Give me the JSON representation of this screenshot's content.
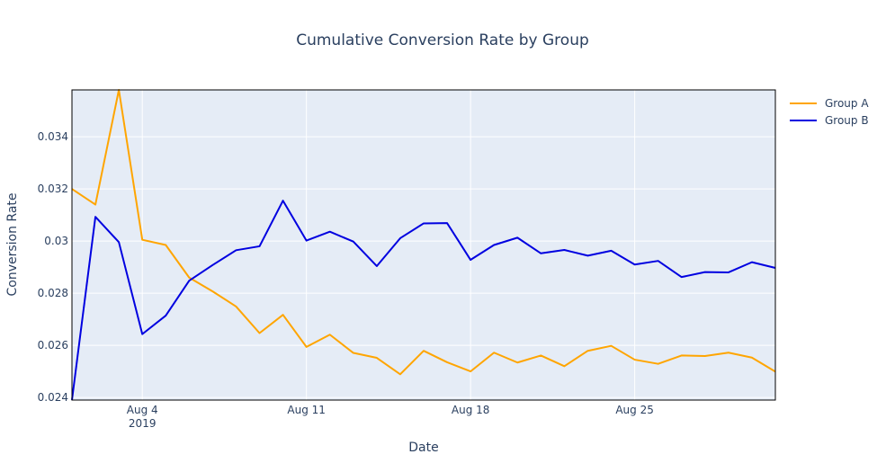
{
  "chart_data": {
    "type": "line",
    "title": "Cumulative Conversion Rate by Group",
    "xlabel": "Date",
    "ylabel": "Conversion Rate",
    "x": [
      "2019-08-01",
      "2019-08-02",
      "2019-08-03",
      "2019-08-04",
      "2019-08-05",
      "2019-08-06",
      "2019-08-07",
      "2019-08-08",
      "2019-08-09",
      "2019-08-10",
      "2019-08-11",
      "2019-08-12",
      "2019-08-13",
      "2019-08-14",
      "2019-08-15",
      "2019-08-16",
      "2019-08-17",
      "2019-08-18",
      "2019-08-19",
      "2019-08-20",
      "2019-08-21",
      "2019-08-22",
      "2019-08-23",
      "2019-08-24",
      "2019-08-25",
      "2019-08-26",
      "2019-08-27",
      "2019-08-28",
      "2019-08-29",
      "2019-08-30",
      "2019-08-31"
    ],
    "xlim": [
      "2019-08-01",
      "2019-08-31"
    ],
    "ylim": [
      0.0239,
      0.0358
    ],
    "x_ticks": [
      {
        "date": "2019-08-04",
        "label": "Aug 4",
        "sublabel": "2019"
      },
      {
        "date": "2019-08-11",
        "label": "Aug 11",
        "sublabel": ""
      },
      {
        "date": "2019-08-18",
        "label": "Aug 18",
        "sublabel": ""
      },
      {
        "date": "2019-08-25",
        "label": "Aug 25",
        "sublabel": ""
      }
    ],
    "y_ticks": [
      {
        "value": 0.024,
        "label": "0.024"
      },
      {
        "value": 0.026,
        "label": "0.026"
      },
      {
        "value": 0.028,
        "label": "0.028"
      },
      {
        "value": 0.03,
        "label": "0.03"
      },
      {
        "value": 0.032,
        "label": "0.032"
      },
      {
        "value": 0.034,
        "label": "0.034"
      }
    ],
    "grid": true,
    "legend_position": "top-right",
    "series": [
      {
        "name": "Group A",
        "color": "#FFA500",
        "values": [
          0.032,
          0.0314,
          0.0358,
          0.03005,
          0.02985,
          0.0286,
          0.02807,
          0.02749,
          0.02647,
          0.02717,
          0.02594,
          0.02641,
          0.02571,
          0.02552,
          0.02489,
          0.02579,
          0.02535,
          0.025,
          0.02572,
          0.02534,
          0.02561,
          0.0252,
          0.02579,
          0.02598,
          0.02545,
          0.02529,
          0.02561,
          0.02559,
          0.02572,
          0.02553,
          0.02499
        ]
      },
      {
        "name": "Group B",
        "color": "#0000E0",
        "values": [
          0.0239,
          0.03093,
          0.02996,
          0.02643,
          0.02714,
          0.02848,
          0.02908,
          0.02965,
          0.0298,
          0.03155,
          0.03002,
          0.03036,
          0.02998,
          0.02904,
          0.03011,
          0.03068,
          0.03069,
          0.02928,
          0.02985,
          0.03013,
          0.02953,
          0.02966,
          0.02944,
          0.02963,
          0.0291,
          0.02924,
          0.02862,
          0.02881,
          0.0288,
          0.02919,
          0.02897
        ]
      }
    ]
  }
}
